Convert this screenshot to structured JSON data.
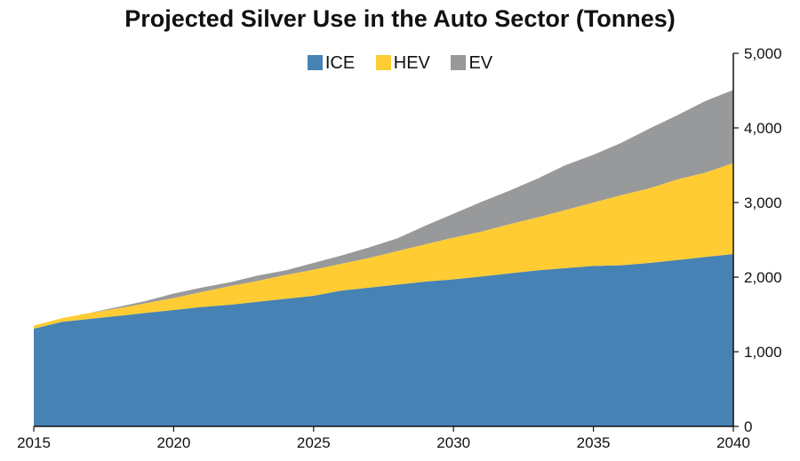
{
  "chart_data": {
    "type": "area",
    "stacked": true,
    "title": "Projected Silver Use in the Auto Sector (Tonnes)",
    "xlabel": "",
    "ylabel": "",
    "xlim": [
      2015,
      2040
    ],
    "ylim": [
      0,
      5000
    ],
    "x_ticks": [
      "2015",
      "2020",
      "2025",
      "2030",
      "2035",
      "2040"
    ],
    "y_ticks": [
      "0",
      "1,000",
      "2,000",
      "3,000",
      "4,000",
      "5,000"
    ],
    "y_axis_side": "right",
    "grid": false,
    "legend_position": "top",
    "x": [
      2015,
      2016,
      2017,
      2018,
      2019,
      2020,
      2021,
      2022,
      2023,
      2024,
      2025,
      2026,
      2027,
      2028,
      2029,
      2030,
      2031,
      2032,
      2033,
      2034,
      2035,
      2036,
      2037,
      2038,
      2039,
      2040
    ],
    "series": [
      {
        "name": "ICE",
        "color": "#4682b4",
        "values": [
          1310,
          1400,
          1440,
          1480,
          1520,
          1560,
          1600,
          1630,
          1670,
          1710,
          1750,
          1820,
          1860,
          1900,
          1940,
          1970,
          2010,
          2050,
          2090,
          2120,
          2150,
          2160,
          2190,
          2230,
          2270,
          2310
        ]
      },
      {
        "name": "HEV",
        "color": "#ffcc33",
        "values": [
          40,
          50,
          80,
          100,
          130,
          160,
          200,
          250,
          280,
          320,
          350,
          360,
          400,
          450,
          500,
          560,
          600,
          660,
          710,
          780,
          850,
          940,
          1000,
          1080,
          1130,
          1220
        ]
      },
      {
        "name": "EV",
        "color": "#98999b",
        "values": [
          0,
          0,
          0,
          20,
          30,
          60,
          60,
          50,
          70,
          60,
          90,
          110,
          140,
          170,
          250,
          320,
          400,
          450,
          520,
          600,
          640,
          700,
          800,
          860,
          960,
          980
        ]
      }
    ]
  }
}
